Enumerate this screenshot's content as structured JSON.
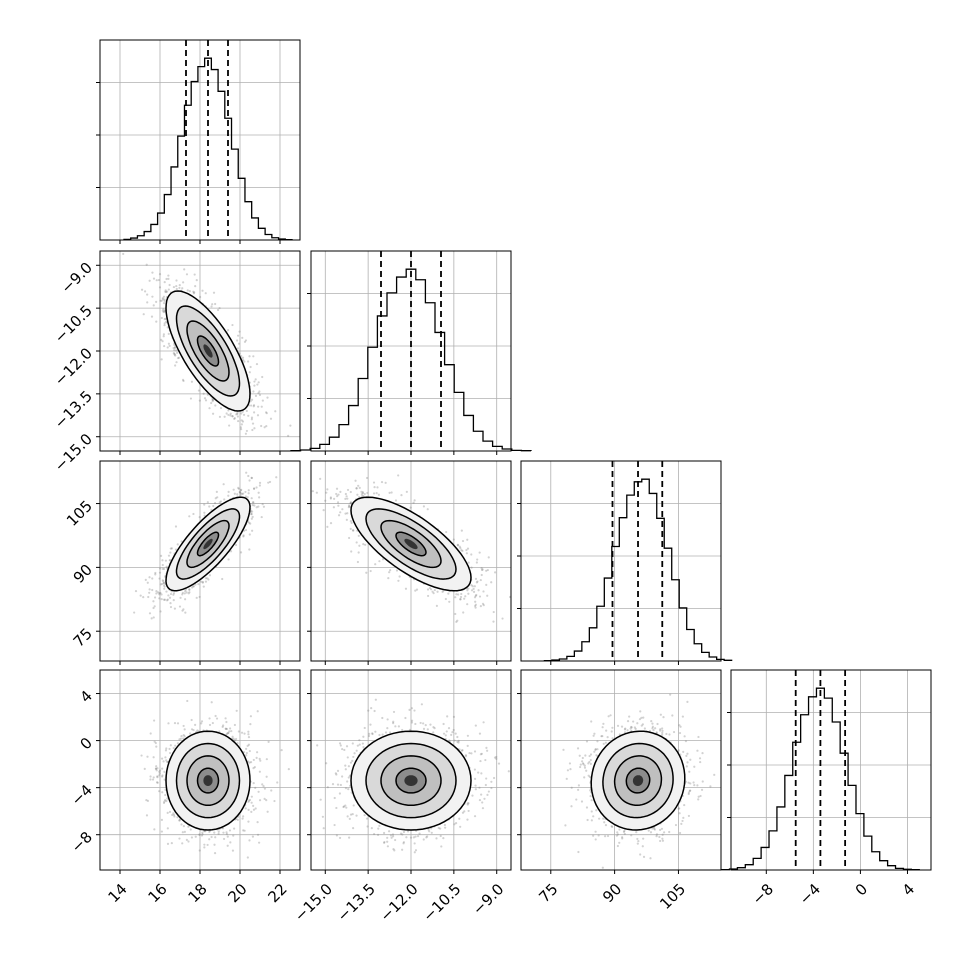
{
  "chart_data": {
    "type": "corner",
    "colors": {
      "ink": "#000000",
      "grid": "#b0b0b0",
      "scatter": "#7f7f7f"
    },
    "parameters": [
      {
        "range": [
          13,
          23
        ],
        "ticks": [
          14,
          16,
          18,
          20,
          22
        ],
        "tick_labels": [
          "14",
          "16",
          "18",
          "20",
          "22"
        ],
        "mean": 18.4,
        "sd": 1.05,
        "quantiles": [
          17.3,
          18.4,
          19.4
        ]
      },
      {
        "range": [
          -15.5,
          -8.5
        ],
        "ticks": [
          -15.0,
          -13.5,
          -12.0,
          -10.5,
          -9.0
        ],
        "tick_labels": [
          "−15.0",
          "−13.5",
          "−12.0",
          "−10.5",
          "−9.0"
        ],
        "mean": -12.0,
        "sd": 1.05,
        "quantiles": [
          -13.05,
          -12.0,
          -10.95
        ]
      },
      {
        "range": [
          68,
          115
        ],
        "ticks": [
          75,
          90,
          105
        ],
        "tick_labels": [
          "75",
          "90",
          "105"
        ],
        "mean": 95.5,
        "sd": 5.5,
        "quantiles": [
          89.5,
          95.5,
          101.2
        ]
      },
      {
        "range": [
          -11,
          6
        ],
        "ticks": [
          -8,
          -4,
          0,
          4
        ],
        "tick_labels": [
          "−8",
          "−4",
          "0",
          "4"
        ],
        "mean": -3.4,
        "sd": 2.1,
        "quantiles": [
          -5.5,
          -3.4,
          -1.3
        ]
      }
    ],
    "histograms": [
      {
        "param": 0,
        "counts": [
          2,
          6,
          13,
          26,
          48,
          83,
          140,
          225,
          320,
          415,
          488,
          534,
          560,
          525,
          458,
          375,
          280,
          190,
          118,
          68,
          36,
          17,
          7,
          3,
          1
        ]
      },
      {
        "param": 1,
        "counts": [
          1,
          3,
          8,
          20,
          42,
          80,
          138,
          220,
          315,
          410,
          480,
          528,
          552,
          520,
          450,
          360,
          262,
          178,
          108,
          60,
          30,
          14,
          6,
          2,
          1
        ]
      },
      {
        "param": 2,
        "counts": [
          1,
          3,
          6,
          14,
          30,
          58,
          100,
          165,
          250,
          345,
          432,
          500,
          540,
          548,
          505,
          430,
          340,
          245,
          160,
          95,
          52,
          26,
          12,
          5,
          2
        ]
      },
      {
        "param": 3,
        "counts": [
          1,
          3,
          7,
          16,
          35,
          68,
          118,
          190,
          285,
          385,
          468,
          522,
          548,
          518,
          446,
          352,
          255,
          170,
          102,
          55,
          28,
          13,
          5,
          2,
          1
        ]
      }
    ],
    "correlations": [
      {
        "row": 1,
        "col": 0,
        "rho": -0.72
      },
      {
        "row": 2,
        "col": 0,
        "rho": 0.78
      },
      {
        "row": 2,
        "col": 1,
        "rho": -0.72
      },
      {
        "row": 3,
        "col": 0,
        "rho": 0.0
      },
      {
        "row": 3,
        "col": 1,
        "rho": 0.0
      },
      {
        "row": 3,
        "col": 2,
        "rho": 0.05
      }
    ],
    "contour_levels_sigma": [
      0.5,
      1.0,
      1.5,
      2.0
    ],
    "grid": true,
    "legend": "none",
    "title": "",
    "xlabel": "",
    "ylabel": ""
  }
}
